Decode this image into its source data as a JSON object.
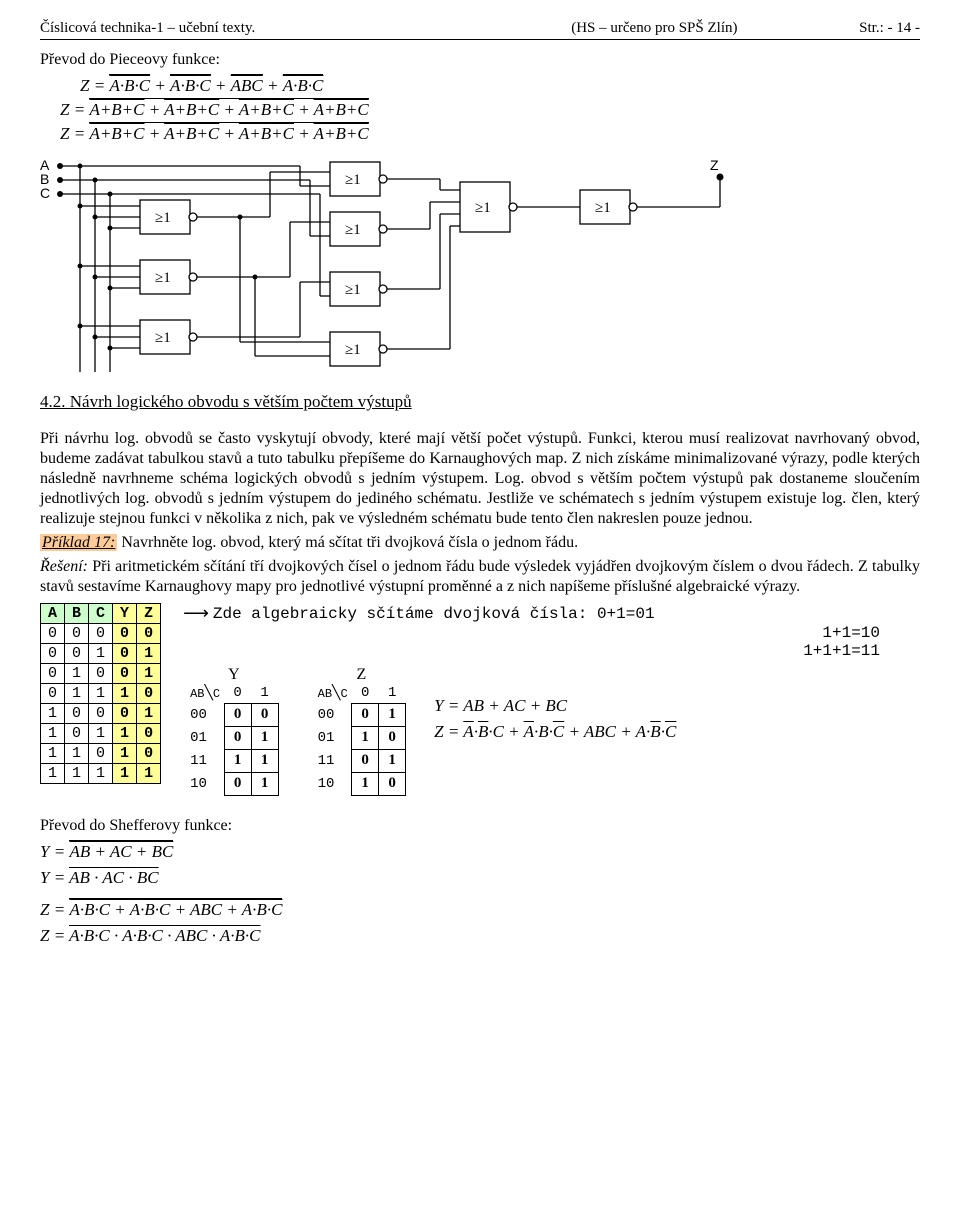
{
  "header": {
    "left": "Číslicová technika-1  – učební texty.",
    "mid": "(HS  – určeno pro SPŠ  Zlín)",
    "right": "Str.:  - 14 -"
  },
  "intro_title": "Převod do Pieceovy funkce:",
  "eq1": "Z = <span class='dbl-over'><span class='overline'><span class='overline'>A</span>·<span class='overline'>B</span>·C</span></span> + <span class='dbl-over'><span class='overline'><span class='overline'>A</span>·B·<span class='overline'>C</span></span></span> + <span class='dbl-over'><span class='overline'>ABC</span></span> + <span class='dbl-over'><span class='overline'>A·<span class='overline'>B</span>·<span class='overline'>C</span></span></span>",
  "eq2": "Z = <span class='dbl-over'><span class='overline'>A+B+<span class='overline'>C</span></span> + <span class='overline'>A+<span class='overline'>B</span>+C</span> + <span class='overline'><span class='overline'>A</span>+<span class='overline'>B</span>+<span class='overline'>C</span></span> + <span class='overline'><span class='overline'>A</span>+B+C</span></span>",
  "eq3": "Z = <span class='overline'><span class='dbl-over'><span class='overline'>A+B+<span class='overline'>C</span></span> + <span class='overline'>A+<span class='overline'>B</span>+C</span> + <span class='overline'><span class='overline'>A</span>+<span class='overline'>B</span>+<span class='overline'>C</span></span> + <span class='overline'><span class='overline'>A</span>+B+C</span></span></span>",
  "circuit": {
    "inputs": [
      "A",
      "B",
      "C"
    ],
    "output": "Z",
    "gate_label": "≥1"
  },
  "section42_title": "4.2. Návrh logického obvodu s větším počtem výstupů",
  "body1": "Při návrhu log. obvodů se často vyskytují obvody, které mají větší počet výstupů. Funkci, kterou musí realizovat navrhovaný obvod, budeme zadávat tabulkou stavů a tuto tabulku přepíšeme do Karnaughových map. Z nich získáme minimalizované výrazy, podle kterých následně navrhneme schéma logických obvodů s jedním výstupem. Log. obvod s větším počtem výstupů pak dostaneme sloučením jednotlivých log. obvodů s jedním výstupem do jediného schématu. Jestliže ve schématech s jedním výstupem existuje log. člen, který realizuje stejnou funkci v několika z nich, pak ve výsledném schématu bude tento člen nakreslen pouze jednou.",
  "example_label": "Příklad 17:",
  "example_text": "  Navrhněte log. obvod, který má sčítat tři dvojková čísla o jednom řádu.",
  "reseni_label": "Řešení:",
  "reseni_text": "  Při aritmetickém sčítání tří dvojkových čísel o jednom řádu bude výsledek vyjádřen dvojkovým číslem o dvou řádech. Z tabulky stavů sestavíme Karnaughovy mapy pro jednotlivé výstupní proměnné a z nich napíšeme příslušné algebraické výrazy.",
  "truth_table": {
    "headers": [
      "A",
      "B",
      "C",
      "Y",
      "Z"
    ],
    "rows": [
      [
        "0",
        "0",
        "0",
        "0",
        "0"
      ],
      [
        "0",
        "0",
        "1",
        "0",
        "1"
      ],
      [
        "0",
        "1",
        "0",
        "0",
        "1"
      ],
      [
        "0",
        "1",
        "1",
        "1",
        "0"
      ],
      [
        "1",
        "0",
        "0",
        "0",
        "1"
      ],
      [
        "1",
        "0",
        "1",
        "1",
        "0"
      ],
      [
        "1",
        "1",
        "0",
        "1",
        "0"
      ],
      [
        "1",
        "1",
        "1",
        "1",
        "1"
      ]
    ]
  },
  "addition_text": "Zde algebraicky sčítáme dvojková čísla: 0+1=01",
  "addition_lines": [
    "1+1=10",
    "1+1+1=11"
  ],
  "kmap_Y": {
    "title": "Y",
    "corner_top": "C",
    "corner_left": "AB",
    "cols": [
      "0",
      "1"
    ],
    "rows": [
      "00",
      "01",
      "11",
      "10"
    ],
    "cells": [
      [
        "0",
        "0"
      ],
      [
        "0",
        "1"
      ],
      [
        "1",
        "1"
      ],
      [
        "0",
        "1"
      ]
    ]
  },
  "kmap_Z": {
    "title": "Z",
    "corner_top": "C",
    "corner_left": "AB",
    "cols": [
      "0",
      "1"
    ],
    "rows": [
      "00",
      "01",
      "11",
      "10"
    ],
    "cells": [
      [
        "0",
        "1"
      ],
      [
        "1",
        "0"
      ],
      [
        "0",
        "1"
      ],
      [
        "1",
        "0"
      ]
    ]
  },
  "result_eqY": "Y = AB + AC + BC",
  "result_eqZ": "Z = <span class='overline'>A</span>·<span class='overline'>B</span>·C + <span class='overline'>A</span>·B·<span class='overline'>C</span> + ABC + A·<span class='overline'>B</span>·<span class='overline'>C</span>",
  "sheffer_title": "Převod do Shefferovy funkce:",
  "sheffer_eq1": "Y = <span class='dbl-over'><span class='overline'>AB + AC + BC</span></span>",
  "sheffer_eq2": "Y = <span class='overline'><span class='overline'>AB</span> · <span class='overline'>AC</span> · <span class='overline'>BC</span></span>",
  "sheffer_eq3": "Z = <span class='dbl-over'><span class='overline'><span class='overline'>A</span>·<span class='overline'>B</span>·C + <span class='overline'>A</span>·B·<span class='overline'>C</span> + ABC + A·<span class='overline'>B</span>·<span class='overline'>C</span></span></span>",
  "sheffer_eq4": "Z = <span class='overline'><span class='overline'><span class='overline'>A</span>·<span class='overline'>B</span>·C</span> · <span class='overline'><span class='overline'>A</span>·B·<span class='overline'>C</span></span> · <span class='overline'>ABC</span> · <span class='overline'>A·<span class='overline'>B</span>·<span class='overline'>C</span></span></span>"
}
